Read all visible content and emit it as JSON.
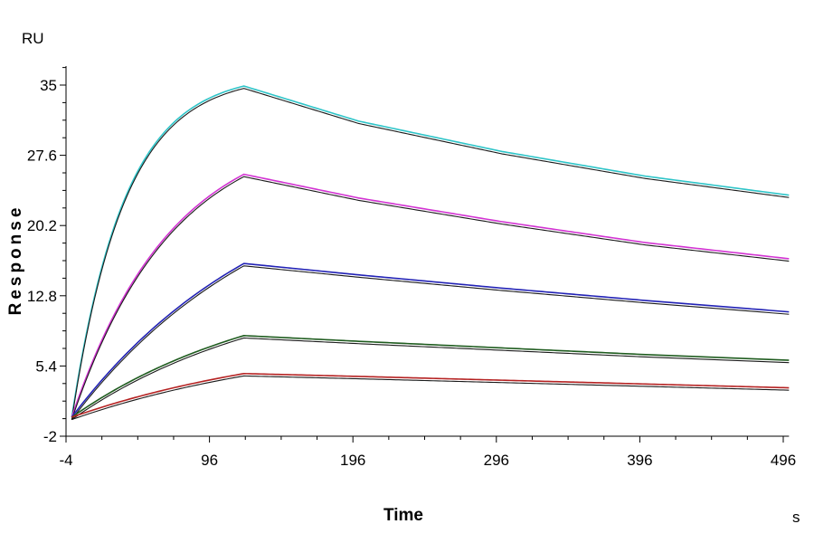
{
  "chart_data": {
    "type": "line",
    "title": "",
    "xlabel": "Time",
    "ylabel": "Response",
    "x_unit": "s",
    "y_unit": "RU",
    "xlim": [
      -4,
      500
    ],
    "ylim": [
      -2,
      37
    ],
    "x_ticks": [
      -4,
      96,
      196,
      296,
      396,
      496
    ],
    "x_tick_labels": [
      "-4",
      "96",
      "196",
      "296",
      "396",
      "496"
    ],
    "y_ticks": [
      -2,
      5.4,
      12.8,
      20.2,
      27.6,
      35
    ],
    "y_tick_labels": [
      "-2",
      "5.4",
      "12.8",
      "20.2",
      "27.6",
      "35"
    ],
    "grid": false,
    "legend": "none",
    "association_end_s": 120,
    "series": [
      {
        "color": "#2ec4c8",
        "x": [
          0,
          10,
          20,
          30,
          40,
          60,
          80,
          100,
          120,
          200,
          300,
          400,
          500
        ],
        "y": [
          0,
          8.7,
          15.6,
          20.5,
          24.3,
          29.2,
          31.8,
          33.5,
          34.9,
          31.2,
          28.0,
          25.4,
          23.4
        ]
      },
      {
        "color": "#d233d2",
        "x": [
          0,
          20,
          40,
          60,
          80,
          100,
          120,
          200,
          300,
          400,
          500
        ],
        "y": [
          0,
          7.8,
          13.6,
          18.0,
          21.2,
          23.6,
          25.6,
          23.1,
          20.6,
          18.4,
          16.7
        ]
      },
      {
        "color": "#2222b5",
        "x": [
          0,
          30,
          60,
          90,
          120,
          200,
          300,
          400,
          500
        ],
        "y": [
          0,
          5.4,
          9.8,
          13.3,
          16.2,
          15.0,
          13.6,
          12.3,
          11.1
        ]
      },
      {
        "color": "#1f5c1f",
        "x": [
          0,
          30,
          60,
          90,
          120,
          200,
          300,
          400,
          500
        ],
        "y": [
          0,
          2.9,
          5.2,
          7.1,
          8.6,
          8.0,
          7.3,
          6.6,
          6.0
        ]
      },
      {
        "color": "#b52222",
        "x": [
          0,
          30,
          60,
          90,
          120,
          200,
          300,
          400,
          500
        ],
        "y": [
          0,
          1.5,
          2.7,
          3.7,
          4.6,
          4.3,
          3.9,
          3.5,
          3.1
        ]
      }
    ]
  }
}
